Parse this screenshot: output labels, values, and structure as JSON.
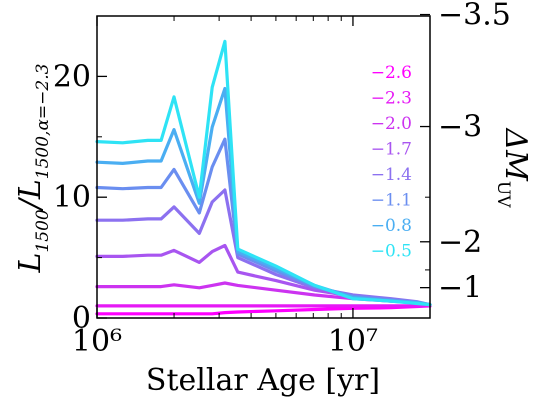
{
  "chart_data": {
    "type": "line",
    "title": "",
    "xlabel": "Stellar Age [yr]",
    "ylabel": "L_{1500}/L_{1500,α=−2.3}",
    "ylabel_right": "ΔM_UV",
    "xscale": "log",
    "xlim": [
      1000000,
      20000000
    ],
    "ylim": [
      0,
      25
    ],
    "grid": false,
    "legend_placement": "top-right",
    "x_ticks": [
      {
        "value": 1000000,
        "label": "10⁶"
      },
      {
        "value": 10000000,
        "label": "10⁷"
      }
    ],
    "y_ticks": [
      {
        "value": 0,
        "label": "0"
      },
      {
        "value": 10,
        "label": "10"
      },
      {
        "value": 20,
        "label": "20"
      }
    ],
    "y_right_ticks": [
      {
        "value": -1,
        "label": "−1"
      },
      {
        "value": -2,
        "label": "−2"
      },
      {
        "value": -3,
        "label": "−3"
      },
      {
        "value": -3.5,
        "label": "−3.5"
      }
    ],
    "x": [
      1000000,
      1260000,
      1580000,
      1780000,
      2000000,
      2510000,
      2820000,
      3160000,
      3550000,
      5000000,
      7080000,
      10000000,
      14100000,
      17800000,
      20000000
    ],
    "series": [
      {
        "name": "−2.6",
        "color": "#ff00ff",
        "values": [
          0.35,
          0.35,
          0.35,
          0.35,
          0.35,
          0.35,
          0.35,
          0.45,
          0.5,
          0.6,
          0.7,
          0.8,
          0.85,
          0.95,
          1.0
        ]
      },
      {
        "name": "−2.3",
        "color": "#e619f5",
        "values": [
          1.0,
          1.0,
          1.0,
          1.0,
          1.0,
          1.0,
          1.0,
          1.0,
          1.0,
          1.0,
          1.0,
          1.0,
          1.0,
          1.0,
          1.0
        ]
      },
      {
        "name": "−2.0",
        "color": "#cc33f0",
        "values": [
          2.6,
          2.6,
          2.6,
          2.6,
          2.75,
          2.5,
          2.7,
          2.9,
          2.7,
          2.3,
          1.9,
          1.6,
          1.4,
          1.25,
          1.1
        ]
      },
      {
        "name": "−1.7",
        "color": "#a855f0",
        "values": [
          5.1,
          5.1,
          5.2,
          5.2,
          5.6,
          4.6,
          5.5,
          6.0,
          3.8,
          3.1,
          2.3,
          1.8,
          1.5,
          1.3,
          1.1
        ]
      },
      {
        "name": "−1.4",
        "color": "#8c71f0",
        "values": [
          8.1,
          8.1,
          8.2,
          8.2,
          9.2,
          7.0,
          9.6,
          10.6,
          5.0,
          3.6,
          2.5,
          1.9,
          1.6,
          1.35,
          1.1
        ]
      },
      {
        "name": "−1.1",
        "color": "#6a8ef0",
        "values": [
          10.8,
          10.7,
          10.8,
          10.8,
          12.3,
          8.7,
          12.5,
          14.8,
          5.3,
          3.9,
          2.6,
          1.8,
          1.5,
          1.3,
          1.1
        ]
      },
      {
        "name": "−0.8",
        "color": "#4aaef2",
        "values": [
          12.9,
          12.8,
          13.0,
          13.0,
          15.6,
          9.5,
          15.8,
          19.0,
          5.5,
          4.1,
          2.7,
          1.7,
          1.4,
          1.3,
          1.1
        ]
      },
      {
        "name": "−0.5",
        "color": "#2ee3f5",
        "values": [
          14.6,
          14.5,
          14.7,
          14.7,
          18.3,
          10.0,
          19.1,
          22.9,
          5.7,
          4.3,
          2.7,
          1.6,
          1.4,
          1.2,
          1.1
        ]
      }
    ]
  }
}
